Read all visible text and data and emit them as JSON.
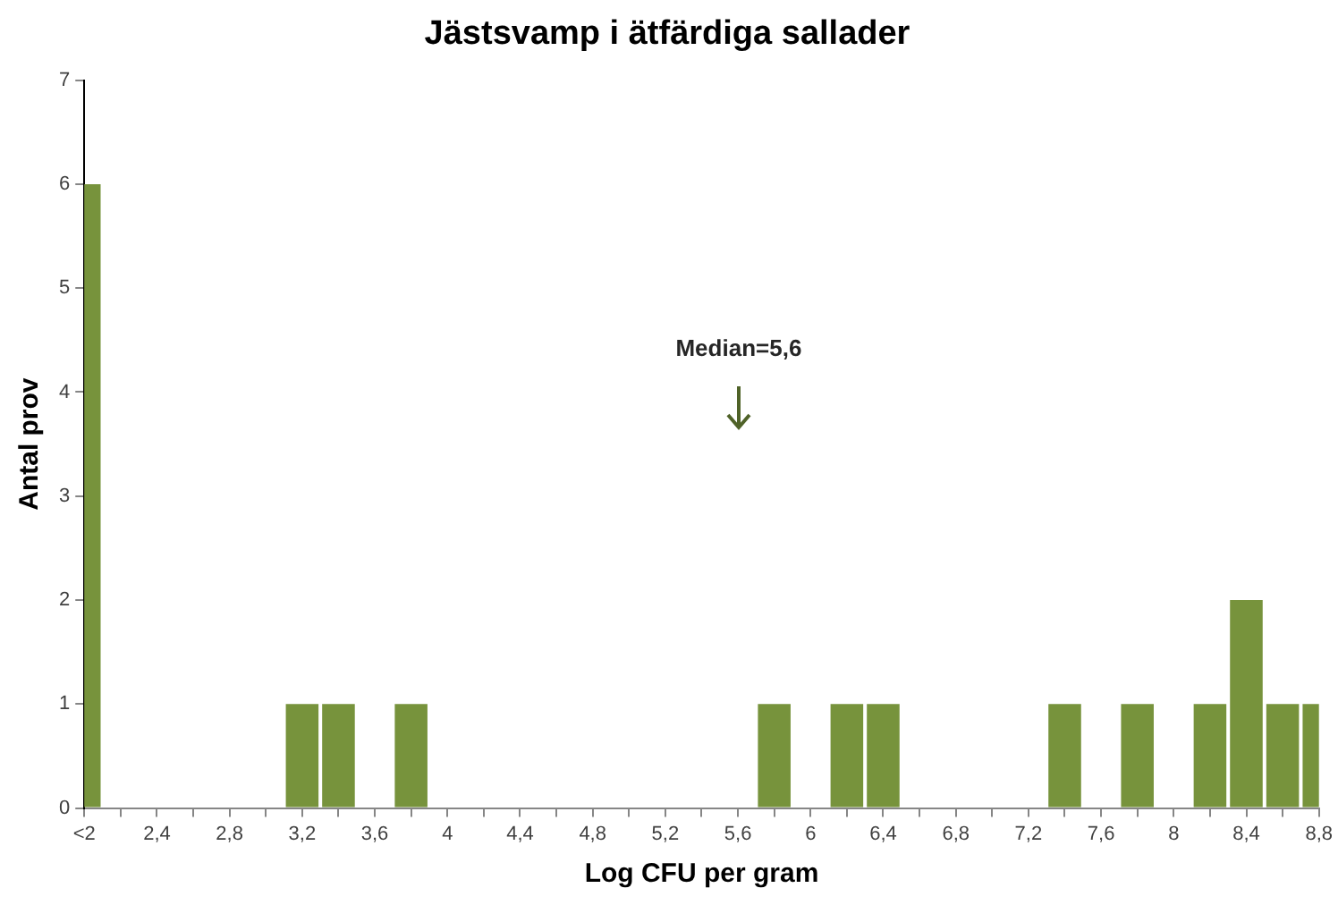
{
  "chart_data": {
    "type": "bar",
    "title": "Jästsvamp i ätfärdiga sallader",
    "xlabel": "Log CFU per gram",
    "ylabel": "Antal prov",
    "categories": [
      "<2",
      null,
      "2,4",
      null,
      "2,8",
      null,
      "3,2",
      null,
      "3,6",
      null,
      "4",
      null,
      "4,4",
      null,
      "4,8",
      null,
      "5,2",
      null,
      "5,6",
      null,
      "6",
      null,
      "6,4",
      null,
      "6,8",
      null,
      "7,2",
      null,
      "7,6",
      null,
      "8",
      null,
      "8,4",
      null,
      "8,8"
    ],
    "values": [
      6,
      0,
      0,
      0,
      0,
      0,
      1,
      1,
      0,
      1,
      0,
      0,
      0,
      0,
      0,
      0,
      0,
      0,
      0,
      1,
      0,
      1,
      1,
      0,
      0,
      0,
      0,
      1,
      0,
      1,
      0,
      1,
      2,
      1,
      1
    ],
    "color": "#77933c",
    "ylim": [
      0,
      7
    ],
    "yticks": [
      0,
      1,
      2,
      3,
      4,
      5,
      6,
      7
    ],
    "annotations": [
      "Median=5,6"
    ]
  }
}
